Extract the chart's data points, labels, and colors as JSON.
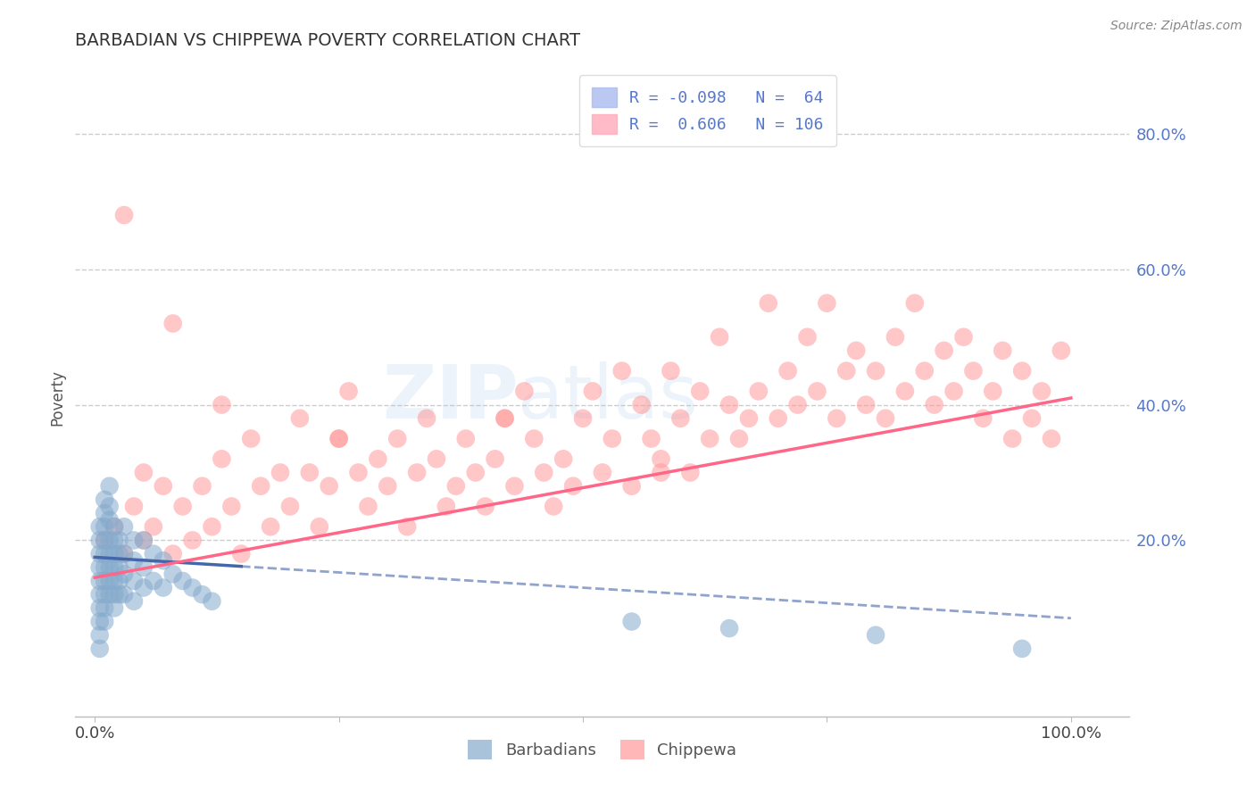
{
  "title": "BARBADIAN VS CHIPPEWA POVERTY CORRELATION CHART",
  "source": "Source: ZipAtlas.com",
  "ylabel": "Poverty",
  "ytick_positions": [
    0.2,
    0.4,
    0.6,
    0.8
  ],
  "ytick_labels": [
    "20.0%",
    "40.0%",
    "60.0%",
    "80.0%"
  ],
  "xlim": [
    -0.02,
    1.06
  ],
  "ylim": [
    -0.06,
    0.88
  ],
  "legend_r_blue": "-0.098",
  "legend_n_blue": "64",
  "legend_r_pink": "0.606",
  "legend_n_pink": "106",
  "blue_color": "#85AACC",
  "pink_color": "#FF9999",
  "blue_line_color": "#4466AA",
  "pink_line_color": "#FF6688",
  "watermark_zip": "ZIP",
  "watermark_atlas": "atlas",
  "background_color": "#FFFFFF",
  "grid_color": "#CCCCCC",
  "ytick_color": "#5577CC",
  "xtick_color": "#444444",
  "blue_intercept": 0.175,
  "blue_slope": -0.09,
  "pink_intercept": 0.145,
  "pink_slope": 0.265,
  "blue_scatter_x": [
    0.005,
    0.005,
    0.005,
    0.005,
    0.005,
    0.005,
    0.005,
    0.005,
    0.005,
    0.005,
    0.01,
    0.01,
    0.01,
    0.01,
    0.01,
    0.01,
    0.01,
    0.01,
    0.01,
    0.01,
    0.015,
    0.015,
    0.015,
    0.015,
    0.015,
    0.015,
    0.015,
    0.015,
    0.02,
    0.02,
    0.02,
    0.02,
    0.02,
    0.02,
    0.02,
    0.025,
    0.025,
    0.025,
    0.025,
    0.025,
    0.03,
    0.03,
    0.03,
    0.03,
    0.04,
    0.04,
    0.04,
    0.04,
    0.05,
    0.05,
    0.05,
    0.06,
    0.06,
    0.07,
    0.07,
    0.08,
    0.09,
    0.1,
    0.11,
    0.12,
    0.55,
    0.65,
    0.8,
    0.95
  ],
  "blue_scatter_y": [
    0.16,
    0.18,
    0.2,
    0.22,
    0.14,
    0.12,
    0.1,
    0.08,
    0.06,
    0.04,
    0.24,
    0.22,
    0.2,
    0.18,
    0.16,
    0.14,
    0.12,
    0.1,
    0.08,
    0.26,
    0.25,
    0.23,
    0.2,
    0.18,
    0.16,
    0.14,
    0.12,
    0.28,
    0.22,
    0.2,
    0.18,
    0.16,
    0.14,
    0.12,
    0.1,
    0.2,
    0.18,
    0.16,
    0.14,
    0.12,
    0.22,
    0.18,
    0.15,
    0.12,
    0.2,
    0.17,
    0.14,
    0.11,
    0.2,
    0.16,
    0.13,
    0.18,
    0.14,
    0.17,
    0.13,
    0.15,
    0.14,
    0.13,
    0.12,
    0.11,
    0.08,
    0.07,
    0.06,
    0.04
  ],
  "pink_scatter_x": [
    0.01,
    0.02,
    0.03,
    0.04,
    0.05,
    0.05,
    0.06,
    0.07,
    0.08,
    0.09,
    0.1,
    0.11,
    0.12,
    0.13,
    0.14,
    0.15,
    0.16,
    0.17,
    0.18,
    0.19,
    0.2,
    0.21,
    0.22,
    0.23,
    0.24,
    0.25,
    0.26,
    0.27,
    0.28,
    0.29,
    0.3,
    0.31,
    0.32,
    0.33,
    0.34,
    0.35,
    0.36,
    0.37,
    0.38,
    0.39,
    0.4,
    0.41,
    0.42,
    0.43,
    0.44,
    0.45,
    0.46,
    0.47,
    0.48,
    0.49,
    0.5,
    0.51,
    0.52,
    0.53,
    0.54,
    0.55,
    0.56,
    0.57,
    0.58,
    0.59,
    0.6,
    0.61,
    0.62,
    0.63,
    0.64,
    0.65,
    0.66,
    0.67,
    0.68,
    0.69,
    0.7,
    0.71,
    0.72,
    0.73,
    0.74,
    0.75,
    0.76,
    0.77,
    0.78,
    0.79,
    0.8,
    0.81,
    0.82,
    0.83,
    0.84,
    0.85,
    0.86,
    0.87,
    0.88,
    0.89,
    0.9,
    0.91,
    0.92,
    0.93,
    0.94,
    0.95,
    0.96,
    0.97,
    0.98,
    0.99,
    0.03,
    0.08,
    0.13,
    0.25,
    0.42,
    0.58
  ],
  "pink_scatter_y": [
    0.2,
    0.22,
    0.18,
    0.25,
    0.2,
    0.3,
    0.22,
    0.28,
    0.18,
    0.25,
    0.2,
    0.28,
    0.22,
    0.32,
    0.25,
    0.18,
    0.35,
    0.28,
    0.22,
    0.3,
    0.25,
    0.38,
    0.3,
    0.22,
    0.28,
    0.35,
    0.42,
    0.3,
    0.25,
    0.32,
    0.28,
    0.35,
    0.22,
    0.3,
    0.38,
    0.32,
    0.25,
    0.28,
    0.35,
    0.3,
    0.25,
    0.32,
    0.38,
    0.28,
    0.42,
    0.35,
    0.3,
    0.25,
    0.32,
    0.28,
    0.38,
    0.42,
    0.3,
    0.35,
    0.45,
    0.28,
    0.4,
    0.35,
    0.32,
    0.45,
    0.38,
    0.3,
    0.42,
    0.35,
    0.5,
    0.4,
    0.35,
    0.38,
    0.42,
    0.55,
    0.38,
    0.45,
    0.4,
    0.5,
    0.42,
    0.55,
    0.38,
    0.45,
    0.48,
    0.4,
    0.45,
    0.38,
    0.5,
    0.42,
    0.55,
    0.45,
    0.4,
    0.48,
    0.42,
    0.5,
    0.45,
    0.38,
    0.42,
    0.48,
    0.35,
    0.45,
    0.38,
    0.42,
    0.35,
    0.48,
    0.68,
    0.52,
    0.4,
    0.35,
    0.38,
    0.3
  ]
}
